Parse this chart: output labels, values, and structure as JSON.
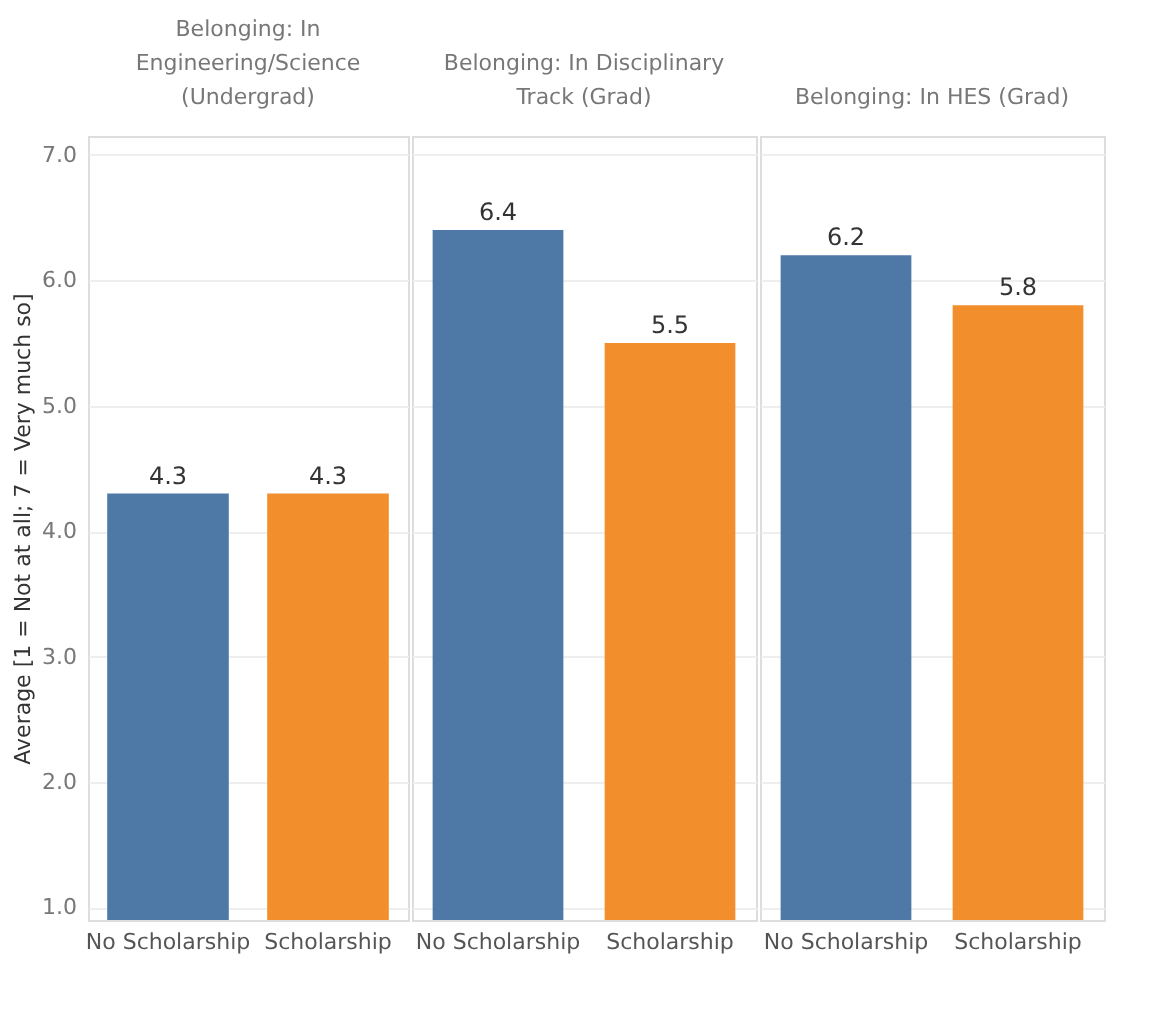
{
  "chart_data": [
    {
      "type": "bar",
      "title": "Belonging: In Engineering/Science (Undergrad)",
      "ylabel": "Average [1 = Not at all; 7 = Very much so]",
      "categories": [
        "No Scholarship",
        "Scholarship"
      ],
      "values": [
        4.3,
        4.3
      ],
      "colors": [
        "#4e79a7",
        "#f28e2b"
      ],
      "ylim": [
        0.9,
        7.15
      ],
      "yticks": [
        {
          "value": 1,
          "label": "1.0"
        },
        {
          "value": 2,
          "label": "2.0"
        },
        {
          "value": 3,
          "label": "3.0"
        },
        {
          "value": 4,
          "label": "4.0"
        },
        {
          "value": 5,
          "label": "5.0"
        },
        {
          "value": 6,
          "label": "6.0"
        },
        {
          "value": 7,
          "label": "7.0"
        }
      ],
      "grid": "y",
      "data_labels": true
    },
    {
      "type": "bar",
      "title": "Belonging: In Disciplinary Track (Grad)",
      "categories": [
        "No Scholarship",
        "Scholarship"
      ],
      "values": [
        6.4,
        5.5
      ],
      "colors": [
        "#4e79a7",
        "#f28e2b"
      ],
      "ylim": [
        0.9,
        7.15
      ],
      "yticks": [
        1,
        2,
        3,
        4,
        5,
        6,
        7
      ],
      "grid": "y",
      "data_labels": true,
      "tick_labels": "x"
    },
    {
      "type": "bar",
      "title": "Belonging: In HES (Grad)",
      "categories": [
        "No Scholarship",
        "Scholarship"
      ],
      "values": [
        6.2,
        5.8
      ],
      "colors": [
        "#4e79a7",
        "#f28e2b"
      ],
      "ylim": [
        0.9,
        7.15
      ],
      "yticks": [
        1,
        2,
        3,
        4,
        5,
        6,
        7
      ],
      "grid": "y",
      "data_labels": true,
      "tick_labels": "x"
    }
  ]
}
